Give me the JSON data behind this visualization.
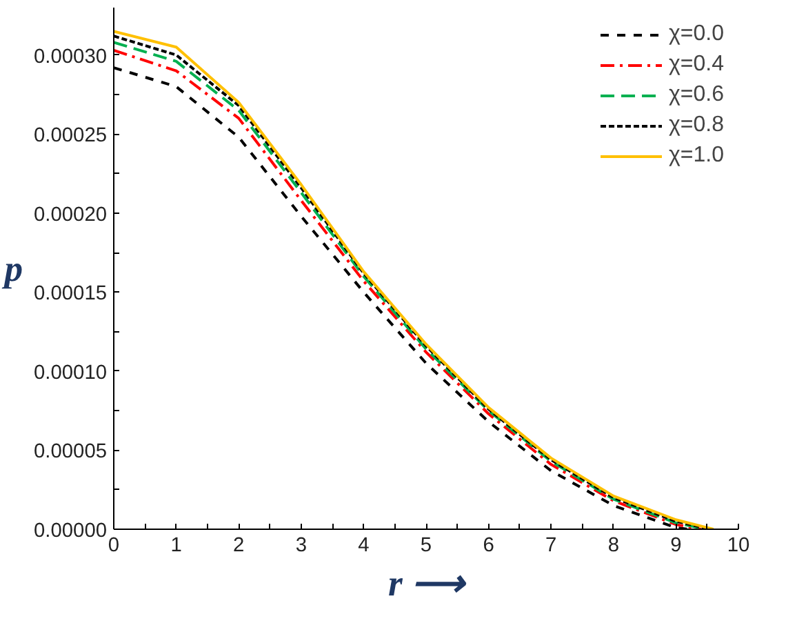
{
  "chart_data": {
    "type": "line",
    "xlabel": "r ⟶",
    "ylabel": "p",
    "xlim": [
      0,
      10
    ],
    "ylim": [
      0,
      0.00033
    ],
    "xticks": [
      0,
      {
        "value": 0.5,
        "label": null
      },
      1,
      {
        "value": 1.5,
        "label": null
      },
      2,
      {
        "value": 2.5,
        "label": null
      },
      3,
      {
        "value": 3.5,
        "label": null
      },
      4,
      {
        "value": 4.5,
        "label": null
      },
      5,
      {
        "value": 5.5,
        "label": null
      },
      6,
      {
        "value": 6.5,
        "label": null
      },
      7,
      {
        "value": 7.5,
        "label": null
      },
      8,
      {
        "value": 8.5,
        "label": null
      },
      9,
      {
        "value": 9.5,
        "label": null
      },
      10
    ],
    "yticks": [
      {
        "value": 0,
        "label": "0.00000"
      },
      {
        "value": 2.5e-05,
        "label": null
      },
      {
        "value": 5e-05,
        "label": "0.00005"
      },
      {
        "value": 7.5e-05,
        "label": null
      },
      {
        "value": 0.0001,
        "label": "0.00010"
      },
      {
        "value": 0.000125,
        "label": null
      },
      {
        "value": 0.00015,
        "label": "0.00015"
      },
      {
        "value": 0.000175,
        "label": null
      },
      {
        "value": 0.0002,
        "label": "0.00020"
      },
      {
        "value": 0.000225,
        "label": null
      },
      {
        "value": 0.00025,
        "label": "0.00025"
      },
      {
        "value": 0.000275,
        "label": null
      },
      {
        "value": 0.0003,
        "label": "0.00030"
      }
    ],
    "grid": false,
    "legend": "top right",
    "marker": "none",
    "series": [
      {
        "name": "χ=0.0",
        "color": "#000000",
        "line_style": "dashed",
        "x": [
          0,
          1,
          2,
          3,
          4,
          5,
          6,
          7,
          8,
          9,
          9.2
        ],
        "values": [
          0.000292,
          0.00028,
          0.000248,
          0.000198,
          0.00015,
          0.000105,
          6.8e-05,
          3.7e-05,
          1.5e-05,
          1e-06,
          0
        ]
      },
      {
        "name": "χ=0.4",
        "color": "#ff0000",
        "line_style": "dashdot",
        "x": [
          0,
          1,
          2,
          3,
          4,
          5,
          6,
          7,
          8,
          9,
          9.4
        ],
        "values": [
          0.000303,
          0.00029,
          0.00026,
          0.000208,
          0.000157,
          0.000112,
          7.3e-05,
          4.1e-05,
          1.8e-05,
          3e-06,
          0
        ]
      },
      {
        "name": "χ=0.6",
        "color": "#00b050",
        "line_style": "dashed",
        "x": [
          0,
          1,
          2,
          3,
          4,
          5,
          6,
          7,
          8,
          9,
          9.5
        ],
        "values": [
          0.000308,
          0.000296,
          0.000265,
          0.000213,
          0.00016,
          0.000114,
          7.5e-05,
          4.3e-05,
          1.9e-05,
          4e-06,
          0
        ]
      },
      {
        "name": "χ=0.8",
        "color": "#000000",
        "line_style": "dotted",
        "x": [
          0,
          1,
          2,
          3,
          4,
          5,
          6,
          7,
          8,
          9,
          9.55
        ],
        "values": [
          0.000312,
          0.0003,
          0.000268,
          0.000216,
          0.000162,
          0.000116,
          7.6e-05,
          4.4e-05,
          2e-05,
          5e-06,
          0
        ]
      },
      {
        "name": "χ=1.0",
        "color": "#ffc000",
        "line_style": "solid",
        "x": [
          0,
          1,
          2,
          3,
          4,
          5,
          6,
          7,
          8,
          9,
          9.6
        ],
        "values": [
          0.000315,
          0.000305,
          0.00027,
          0.000218,
          0.000163,
          0.000117,
          7.7e-05,
          4.5e-05,
          2.1e-05,
          6e-06,
          0
        ]
      }
    ]
  }
}
